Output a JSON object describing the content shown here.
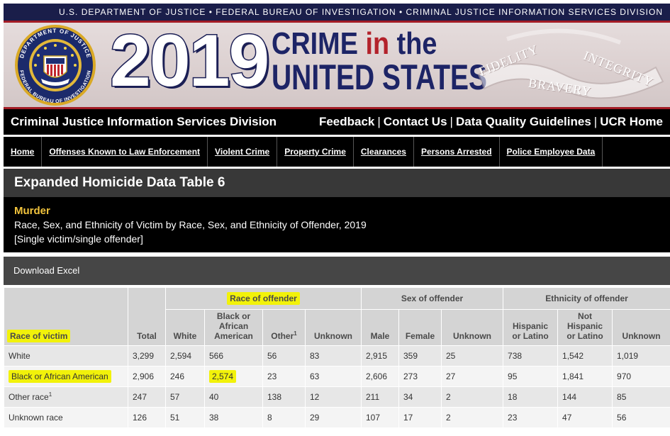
{
  "header": {
    "agency_line": "U.S. DEPARTMENT OF JUSTICE • FEDERAL BUREAU OF INVESTIGATION • CRIMINAL JUSTICE INFORMATION SERVICES DIVISION",
    "seal_text_top": "DEPARTMENT OF JUSTICE",
    "seal_text_bottom": "FEDERAL BUREAU OF INVESTIGATION",
    "year": "2019",
    "title_word1": "CRIME",
    "title_in": "in",
    "title_the": "the",
    "title_line2": "UNITED STATES",
    "ribbon_words": [
      "FIDELITY",
      "BRAVERY",
      "INTEGRITY"
    ]
  },
  "division_bar": {
    "name": "Criminal Justice Information Services Division",
    "links": [
      "Feedback",
      "Contact Us",
      "Data Quality Guidelines",
      "UCR Home"
    ],
    "separator": "|"
  },
  "nav": {
    "items": [
      "Home",
      "Offenses Known to Law Enforcement",
      "Violent Crime",
      "Property Crime",
      "Clearances",
      "Persons Arrested",
      "Police Employee Data"
    ]
  },
  "table_block": {
    "title": "Expanded Homicide Data Table 6",
    "offense": "Murder",
    "description": "Race, Sex, and Ethnicity of Victim by Race, Sex, and Ethnicity of Offender, 2019",
    "note": "[Single victim/single offender]",
    "download_label": "Download Excel"
  },
  "table": {
    "row_header": "Race of victim",
    "total_header": "Total",
    "groups": {
      "race": "Race of offender",
      "sex": "Sex of offender",
      "ethnicity": "Ethnicity of offender"
    },
    "columns": {
      "white": "White",
      "black_l1": "Black or",
      "black_l2": "African",
      "black_l3": "American",
      "other": "Other",
      "other_sup": "1",
      "unknown_race": "Unknown",
      "male": "Male",
      "female": "Female",
      "unknown_sex": "Unknown",
      "hisp_l1": "Hispanic",
      "hisp_l2": "or Latino",
      "nothisp_l1": "Not",
      "nothisp_l2": "Hispanic",
      "nothisp_l3": "or Latino",
      "unknown_eth": "Unknown"
    },
    "rows": [
      {
        "label": "White",
        "sup": "",
        "values": [
          "3,299",
          "2,594",
          "566",
          "56",
          "83",
          "2,915",
          "359",
          "25",
          "738",
          "1,542",
          "1,019"
        ]
      },
      {
        "label": "Black or African American",
        "sup": "",
        "values": [
          "2,906",
          "246",
          "2,574",
          "23",
          "63",
          "2,606",
          "273",
          "27",
          "95",
          "1,841",
          "970"
        ]
      },
      {
        "label": "Other race",
        "sup": "1",
        "values": [
          "247",
          "57",
          "40",
          "138",
          "12",
          "211",
          "34",
          "2",
          "18",
          "144",
          "85"
        ]
      },
      {
        "label": "Unknown race",
        "sup": "",
        "values": [
          "126",
          "51",
          "38",
          "8",
          "29",
          "107",
          "17",
          "2",
          "23",
          "47",
          "56"
        ]
      }
    ]
  }
}
